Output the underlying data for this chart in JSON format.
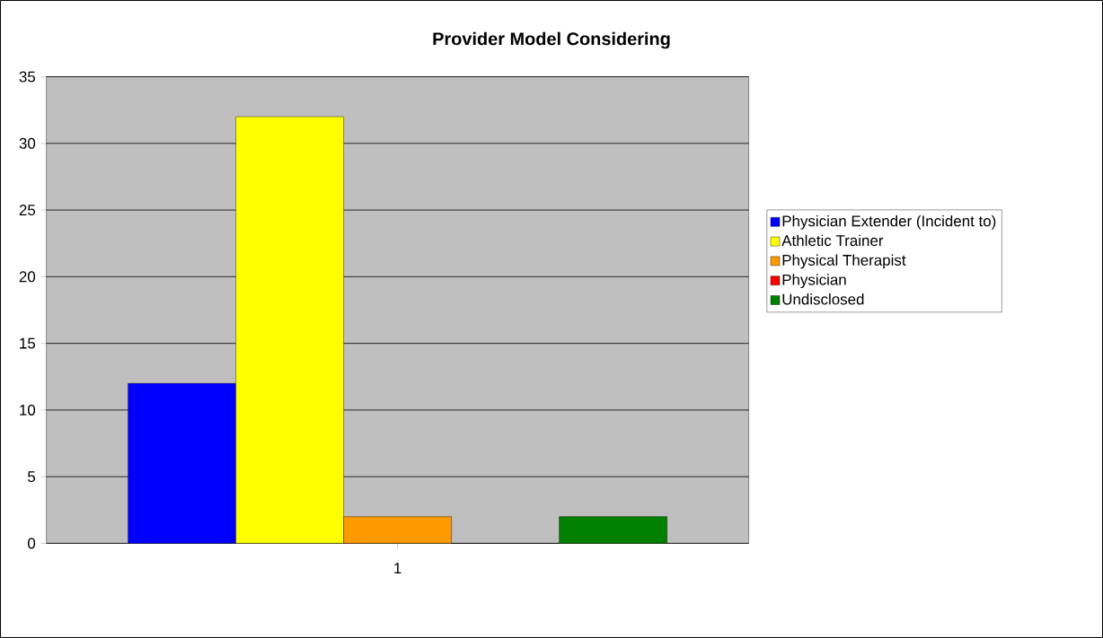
{
  "chart_data": {
    "type": "bar",
    "title": "Provider Model Considering",
    "categories": [
      "1"
    ],
    "series": [
      {
        "name": "Physician Extender (Incident to)",
        "color": "#0000ff",
        "values": [
          12
        ]
      },
      {
        "name": "Athletic Trainer",
        "color": "#ffff00",
        "values": [
          32
        ]
      },
      {
        "name": "Physical Therapist",
        "color": "#ff9900",
        "values": [
          2
        ]
      },
      {
        "name": "Physician",
        "color": "#ff0000",
        "values": [
          0
        ]
      },
      {
        "name": "Undisclosed",
        "color": "#008000",
        "values": [
          2
        ]
      }
    ],
    "ylim": [
      0,
      35
    ],
    "yticks": [
      0,
      5,
      10,
      15,
      20,
      25,
      30,
      35
    ],
    "grid": "y",
    "legend": "right"
  }
}
